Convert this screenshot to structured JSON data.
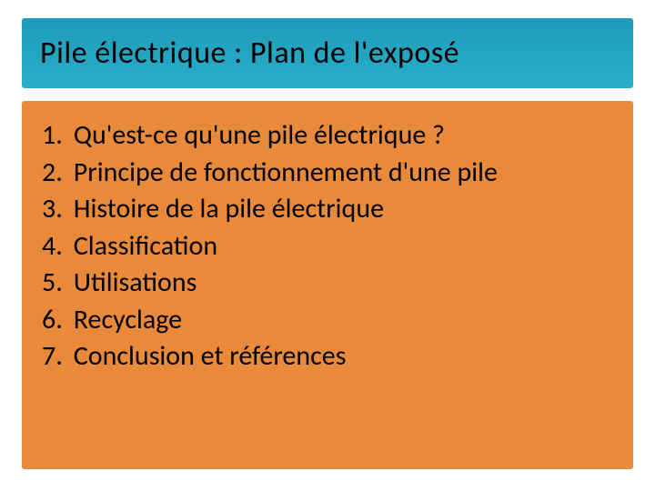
{
  "title": "Pile électrique : Plan de l'exposé",
  "colors": {
    "title_grad_top": "#1e9bb8",
    "title_grad_bottom": "#28aecb",
    "title_text": "#000000",
    "body_bg": "#e98a3a",
    "body_text": "#000000"
  },
  "typography": {
    "title_fontsize": 34,
    "item_fontsize": 30,
    "font_family": "Calibri"
  },
  "items": [
    {
      "n": "1.",
      "text": "Qu'est-ce qu'une pile électrique ?"
    },
    {
      "n": "2.",
      "text": "Principe de fonctionnement d'une pile"
    },
    {
      "n": "3.",
      "text": "Histoire de la pile électrique"
    },
    {
      "n": "4.",
      "text": "Classification"
    },
    {
      "n": "5.",
      "text": "Utilisations"
    },
    {
      "n": "6.",
      "text": "Recyclage"
    },
    {
      "n": "7.",
      "text": "Conclusion et références"
    }
  ]
}
